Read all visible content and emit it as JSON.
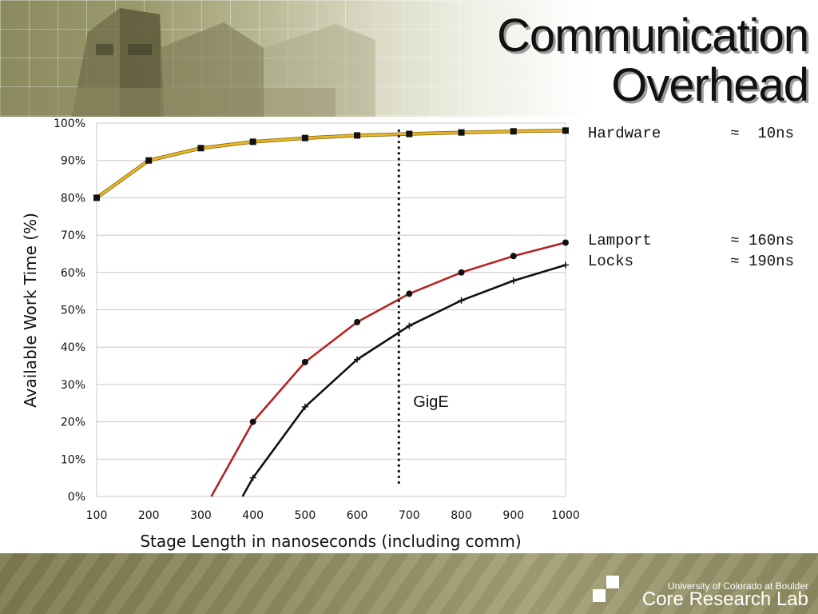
{
  "slide": {
    "title_line1": "Communication",
    "title_line2": "Overhead"
  },
  "notes": [
    {
      "label": "Hardware",
      "value": "≈  10ns"
    },
    {
      "label": "Lamport",
      "value": "≈ 160ns"
    },
    {
      "label": "Locks",
      "value": "≈ 190ns"
    }
  ],
  "footer": {
    "university": "University of Colorado at Boulder",
    "lab": "Core Research Lab"
  },
  "chart_data": {
    "type": "line",
    "xlabel": "Stage Length in nanoseconds (including comm)",
    "ylabel": "Available Work Time (%)",
    "xlim": [
      100,
      1000
    ],
    "ylim": [
      0,
      100
    ],
    "x_ticks": [
      100,
      200,
      300,
      400,
      500,
      600,
      700,
      800,
      900,
      1000
    ],
    "y_ticks": [
      "0%",
      "10%",
      "20%",
      "30%",
      "40%",
      "50%",
      "60%",
      "70%",
      "80%",
      "90%",
      "100%"
    ],
    "y_tick_values": [
      0,
      10,
      20,
      30,
      40,
      50,
      60,
      70,
      80,
      90,
      100
    ],
    "grid": true,
    "series": [
      {
        "color": "#e8b626",
        "marker": "square",
        "x": [
          100,
          200,
          300,
          400,
          500,
          600,
          700,
          800,
          900,
          1000
        ],
        "y": [
          80,
          90,
          93.3,
          95,
          96,
          96.7,
          97.1,
          97.5,
          97.8,
          98
        ]
      },
      {
        "color": "#b52222",
        "marker": "circle",
        "x": [
          320,
          400,
          500,
          600,
          700,
          800,
          900,
          1000
        ],
        "y": [
          0,
          20,
          36,
          46.7,
          54.3,
          60,
          64.4,
          68
        ]
      },
      {
        "color": "#111111",
        "marker": "plus",
        "x": [
          380,
          400,
          500,
          600,
          700,
          800,
          900,
          1000
        ],
        "y": [
          0,
          5,
          24,
          36.7,
          45.7,
          52.5,
          57.8,
          62
        ]
      }
    ],
    "annotations": [
      {
        "text": "GigE",
        "x": 680,
        "y_from": 3,
        "y_to": 98
      }
    ]
  }
}
